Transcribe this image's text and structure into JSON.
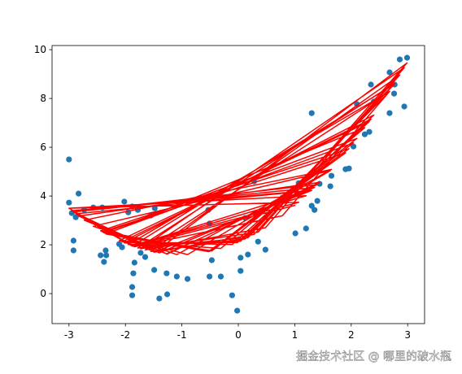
{
  "chart_data": {
    "type": "scatter",
    "x": [
      -3.0,
      1.2,
      -1.86,
      -3.0,
      1.07,
      -1.88,
      -2.95,
      1.3,
      -1.88,
      -2.88,
      1.3,
      -1.49,
      -2.92,
      1.35,
      -1.4,
      -2.92,
      1.4,
      -1.27,
      -2.83,
      1.44,
      -1.26,
      -2.73,
      1.65,
      -1.09,
      -2.57,
      1.63,
      -0.9,
      -2.41,
      1.9,
      -0.51,
      -2.44,
      1.96,
      -0.53,
      -2.35,
      2.04,
      -0.47,
      -2.38,
      2.1,
      -0.51,
      -2.34,
      2.24,
      -0.31,
      -2.11,
      2.32,
      -0.11,
      -2.06,
      2.35,
      -0.02,
      -2.02,
      2.4,
      0.04,
      -1.95,
      2.68,
      0.04,
      -1.88,
      2.76,
      0.17,
      -1.78,
      2.77,
      0.12,
      -1.55,
      2.86,
      0.28,
      -1.48,
      2.99,
      0.35,
      -1.73,
      2.94,
      0.48,
      -1.65,
      2.68,
      0.78,
      -1.84,
      1.01
    ],
    "series": [
      {
        "type": "scatter",
        "color": "#1f77b4",
        "values": [
          5.5,
          2.67,
          0.83,
          3.73,
          4.53,
          0.27,
          3.3,
          7.4,
          -0.07,
          3.13,
          3.6,
          0.97,
          2.17,
          3.43,
          -0.2,
          1.77,
          3.8,
          0.83,
          4.1,
          4.5,
          -0.03,
          3.43,
          4.83,
          0.7,
          3.53,
          4.4,
          0.6,
          3.53,
          5.1,
          2.87,
          1.57,
          5.13,
          3.43,
          1.77,
          6.03,
          1.37,
          1.3,
          7.77,
          0.7,
          1.57,
          6.53,
          0.7,
          2.03,
          6.63,
          -0.07,
          1.9,
          8.57,
          -0.7,
          3.77,
          7.87,
          0.93,
          3.33,
          7.4,
          1.47,
          3.57,
          8.2,
          1.6,
          3.43,
          8.57,
          3.1,
          3.2,
          9.6,
          4.6,
          3.5,
          9.67,
          2.13,
          1.67,
          7.67,
          1.8,
          1.5,
          9.07,
          3.93,
          1.27,
          2.47
        ]
      },
      {
        "type": "line",
        "color": "#ff0000",
        "values": [
          3.5,
          4.01,
          1.94,
          3.5,
          3.74,
          1.95,
          3.4,
          4.23,
          1.95,
          3.27,
          4.23,
          1.7,
          3.35,
          4.35,
          1.67,
          3.35,
          4.47,
          1.63,
          3.18,
          4.56,
          1.62,
          3.01,
          5.09,
          1.6,
          2.76,
          5.04,
          1.6,
          2.53,
          5.77,
          1.73,
          2.57,
          5.94,
          1.72,
          2.45,
          6.18,
          1.75,
          2.49,
          6.36,
          1.73,
          2.44,
          6.8,
          1.85,
          2.17,
          7.05,
          2.01,
          2.12,
          7.15,
          2.09,
          2.08,
          7.32,
          2.15,
          2.01,
          8.29,
          2.15,
          1.95,
          8.58,
          2.29,
          1.87,
          8.62,
          2.24,
          1.73,
          8.96,
          2.43,
          1.7,
          9.46,
          2.52,
          1.84,
          9.26,
          2.7,
          1.79,
          8.29,
          3.19,
          1.92,
          3.62
        ]
      }
    ],
    "xlim": [
      -3.3,
      3.3
    ],
    "xticks": [
      -3,
      -2,
      -1,
      0,
      1,
      2,
      3
    ],
    "ylim": [
      -1.23,
      10.17
    ],
    "yticks": [
      0,
      2,
      4,
      6,
      8,
      10
    ],
    "grid": false
  },
  "watermark": "掘金技术社区 @ 哪里的破水瓶"
}
